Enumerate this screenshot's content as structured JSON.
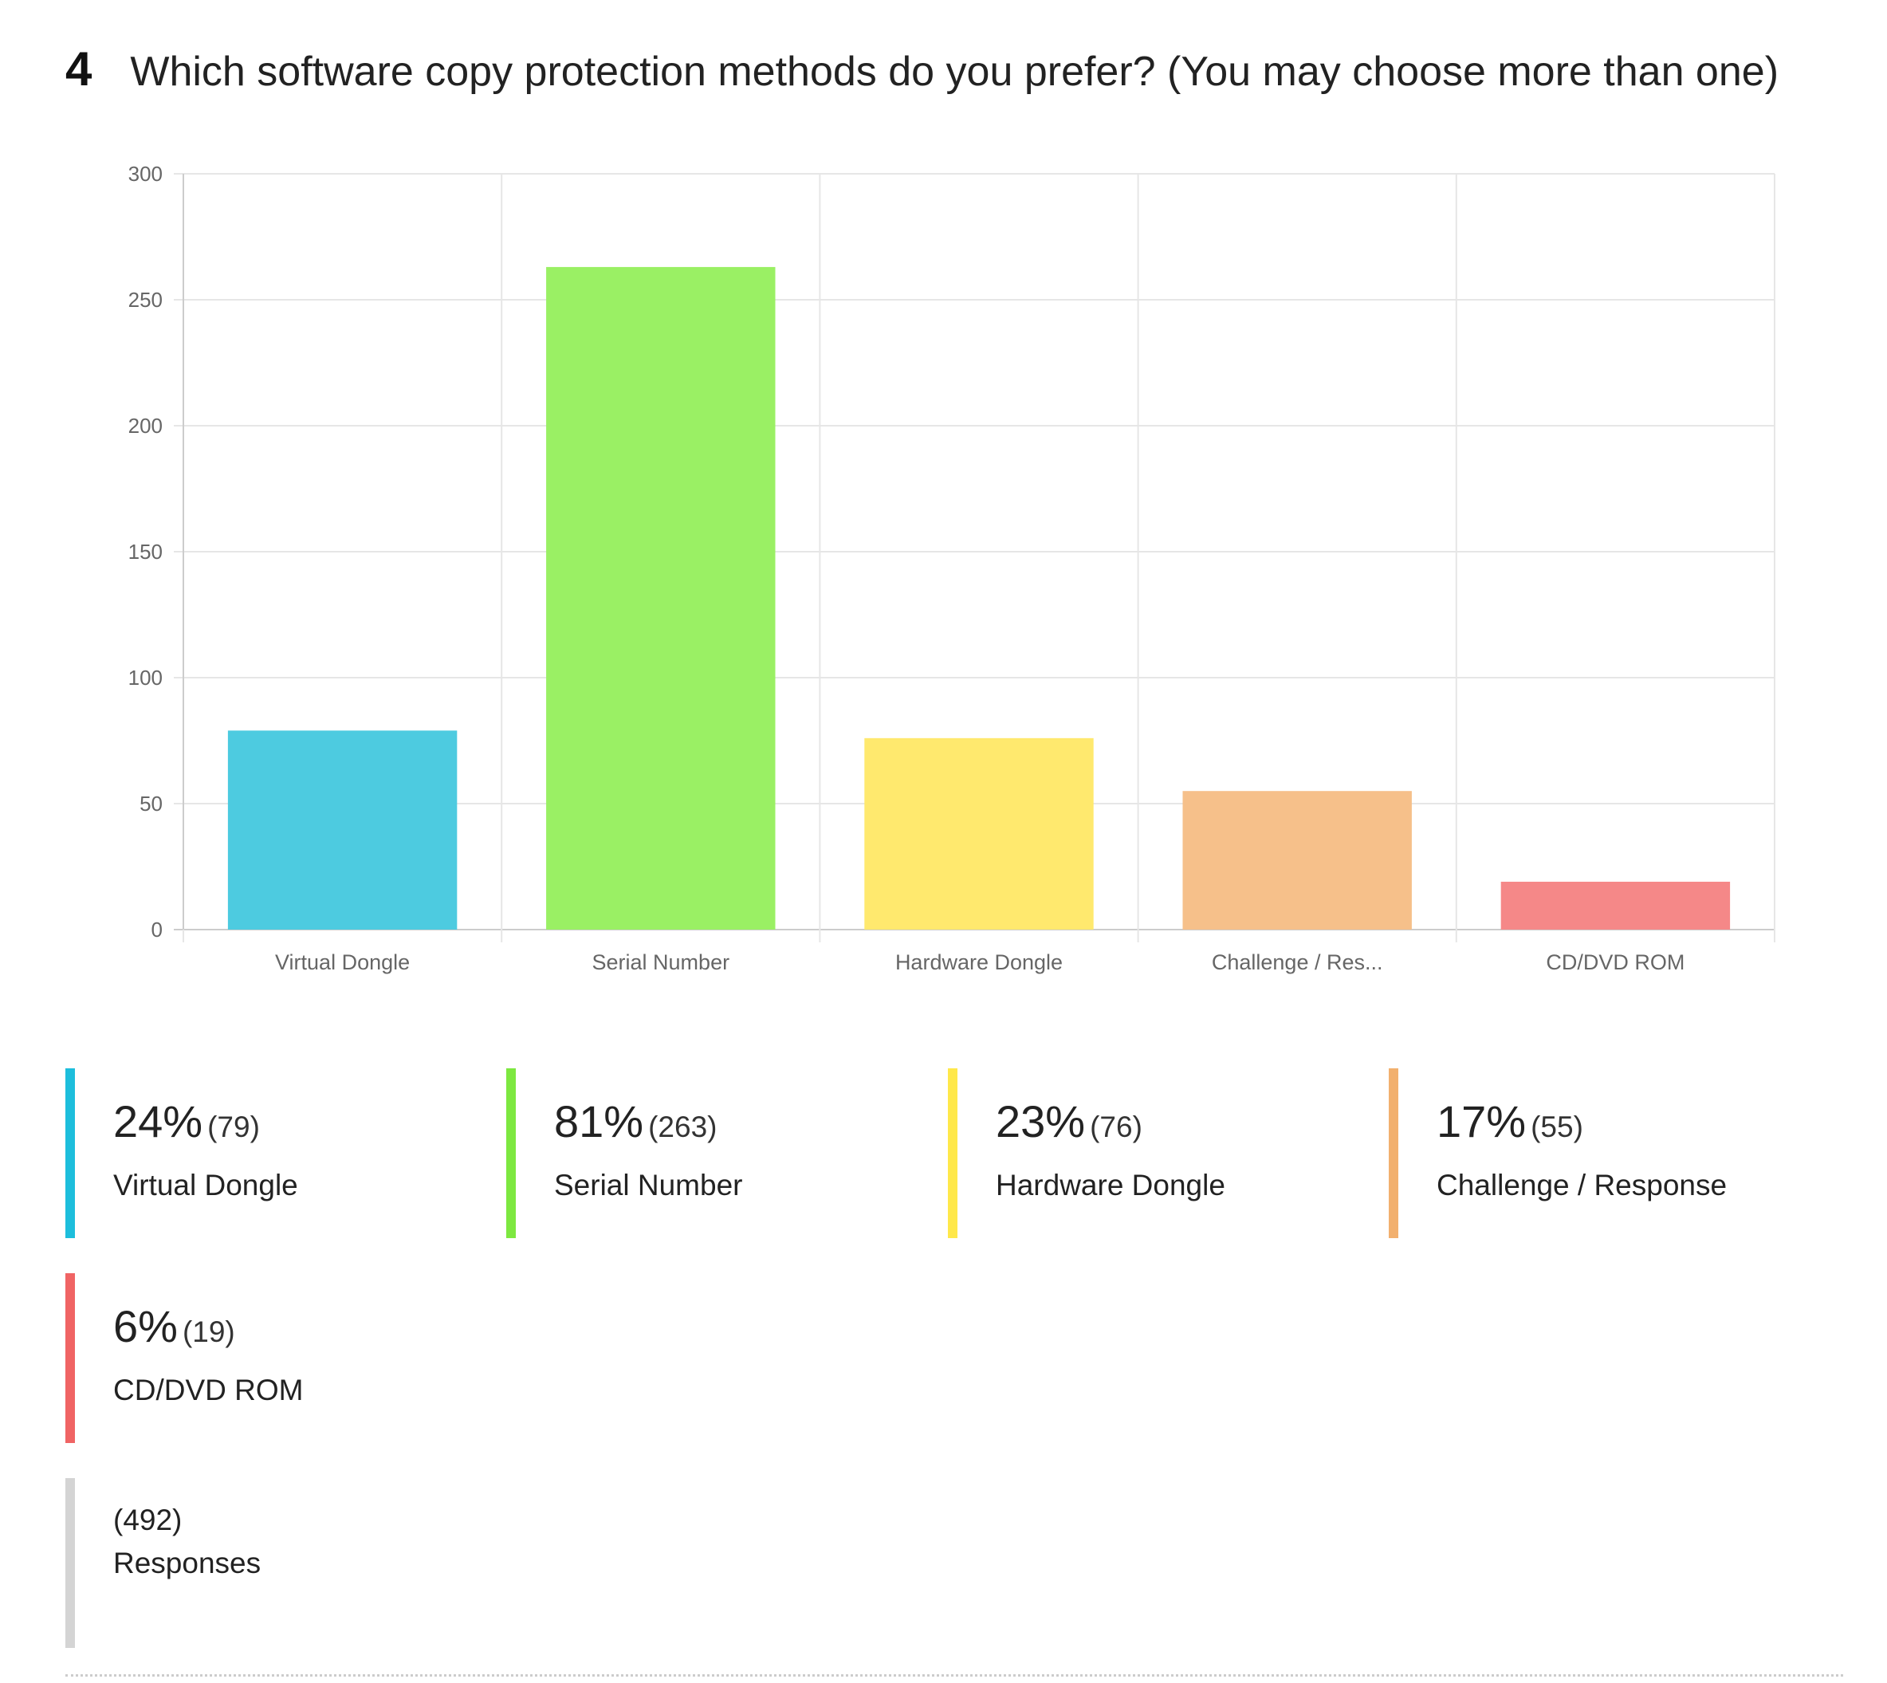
{
  "question": {
    "number": "4",
    "text": "Which software copy protection methods do you prefer? (You may choose more than one)"
  },
  "chart_data": {
    "type": "bar",
    "categories": [
      "Virtual Dongle",
      "Serial Number",
      "Hardware Dongle",
      "Challenge / Res...",
      "CD/DVD ROM"
    ],
    "values": [
      79,
      263,
      76,
      55,
      19
    ],
    "colors": [
      "#4DCBE0",
      "#9AF064",
      "#FFE96E",
      "#F6C08A",
      "#F58888"
    ],
    "ylim": [
      0,
      300
    ],
    "yticks": [
      0,
      50,
      100,
      150,
      200,
      250,
      300
    ],
    "xlabel": "",
    "ylabel": "",
    "grid": true
  },
  "legend": {
    "items": [
      {
        "percent": "24%",
        "count": "(79)",
        "label": "Virtual Dongle",
        "color": "#1DBEDC"
      },
      {
        "percent": "81%",
        "count": "(263)",
        "label": "Serial Number",
        "color": "#7DE840"
      },
      {
        "percent": "23%",
        "count": "(76)",
        "label": "Hardware Dongle",
        "color": "#FFE84A"
      },
      {
        "percent": "17%",
        "count": "(55)",
        "label": "Challenge / Response",
        "color": "#F2B06E"
      },
      {
        "percent": "6%",
        "count": "(19)",
        "label": "CD/DVD ROM",
        "color": "#F06464"
      }
    ],
    "responses": {
      "count": "(492)",
      "label": "Responses",
      "color": "#D4D4D4"
    }
  }
}
